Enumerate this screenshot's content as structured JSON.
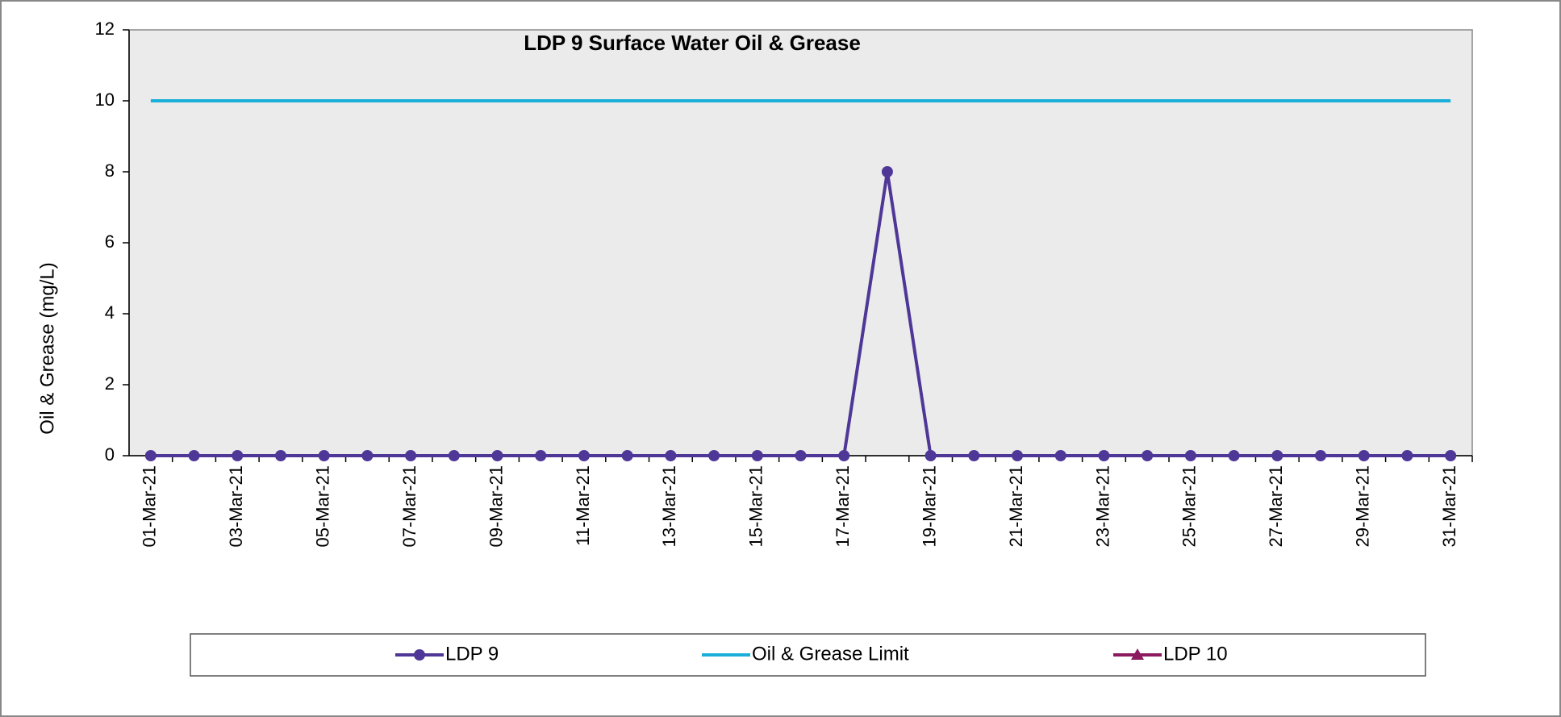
{
  "chart_data": {
    "type": "line",
    "title": "LDP 9 Surface Water Oil & Grease",
    "ylabel": "Oil & Grease (mg/L)",
    "categories": [
      "01-Mar-21",
      null,
      "03-Mar-21",
      null,
      "05-Mar-21",
      null,
      "07-Mar-21",
      null,
      "09-Mar-21",
      null,
      "11-Mar-21",
      null,
      "13-Mar-21",
      null,
      "15-Mar-21",
      null,
      "17-Mar-21",
      null,
      "19-Mar-21",
      null,
      "21-Mar-21",
      null,
      "23-Mar-21",
      null,
      "25-Mar-21",
      null,
      "27-Mar-21",
      null,
      "29-Mar-21",
      null,
      "31-Mar-21"
    ],
    "series": [
      {
        "name": "LDP 9",
        "color": "#4f3797",
        "marker": "circle",
        "values": [
          0,
          0,
          0,
          0,
          0,
          0,
          0,
          0,
          0,
          0,
          0,
          0,
          0,
          0,
          0,
          0,
          0,
          8,
          0,
          0,
          0,
          0,
          0,
          0,
          0,
          0,
          0,
          0,
          0,
          0,
          0
        ]
      },
      {
        "name": "Oil & Grease Limit",
        "color": "#1aaed9",
        "marker": "none",
        "values": [
          10,
          10,
          10,
          10,
          10,
          10,
          10,
          10,
          10,
          10,
          10,
          10,
          10,
          10,
          10,
          10,
          10,
          10,
          10,
          10,
          10,
          10,
          10,
          10,
          10,
          10,
          10,
          10,
          10,
          10,
          10
        ]
      },
      {
        "name": "LDP 10",
        "color": "#8b1a5f",
        "marker": "triangle",
        "values": [
          null,
          null,
          null,
          null,
          null,
          null,
          null,
          null,
          null,
          null,
          null,
          null,
          null,
          null,
          null,
          null,
          null,
          null,
          null,
          null,
          null,
          null,
          null,
          null,
          null,
          null,
          null,
          null,
          null,
          null,
          null
        ]
      }
    ],
    "ylim": [
      0,
      12
    ],
    "yticks": [
      0,
      2,
      4,
      6,
      8,
      10,
      12
    ],
    "grid": false,
    "legend": "bottom"
  }
}
